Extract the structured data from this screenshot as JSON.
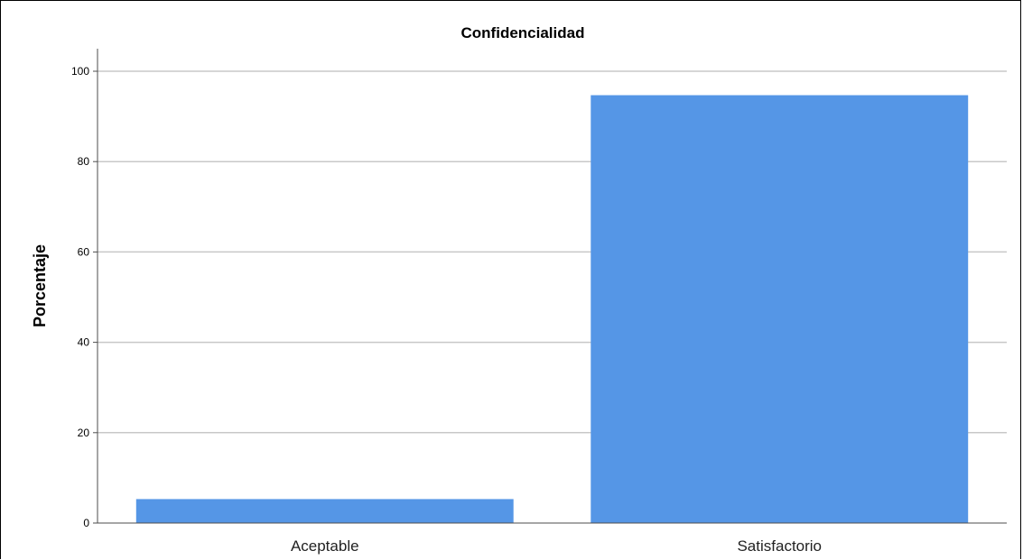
{
  "chart_data": {
    "type": "bar",
    "title": "Confidencialidad",
    "xlabel": "",
    "ylabel": "Porcentaje",
    "categories": [
      "Aceptable",
      "Satisfactorio"
    ],
    "values": [
      5.3,
      94.7
    ],
    "ylim": [
      0,
      105
    ],
    "yticks": [
      0,
      20,
      40,
      60,
      80,
      100
    ],
    "grid": true,
    "bar_color": "#5596e6",
    "grid_color": "#c8c8c8",
    "axis_color": "#4d4d4d"
  }
}
